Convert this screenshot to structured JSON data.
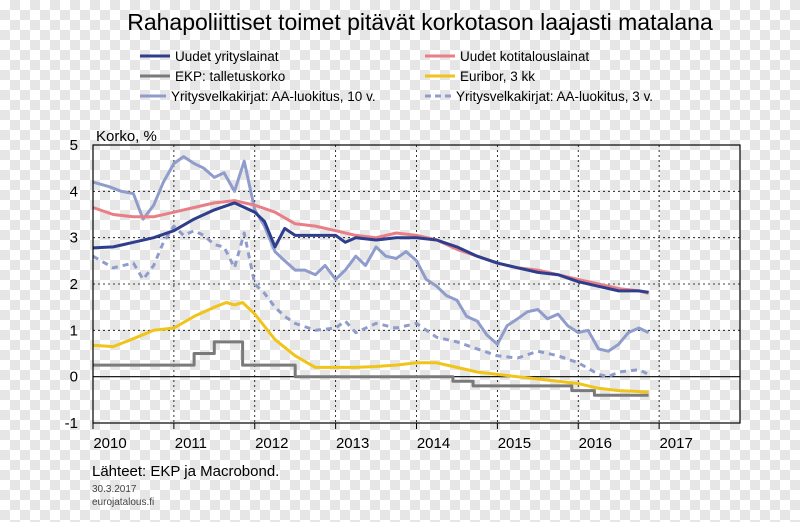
{
  "chart_data": {
    "type": "line",
    "title": "Rahapoliittiset toimet pitävät korkotason laajasti matalana",
    "ylabel": "Korko, %",
    "xlabel": "",
    "ylim": [
      -1,
      5
    ],
    "xlim": [
      2010,
      2018
    ],
    "yticks": [
      -1,
      0,
      1,
      2,
      3,
      4,
      5
    ],
    "xticks": [
      "2010",
      "2011",
      "2012",
      "2013",
      "2014",
      "2015",
      "2016",
      "2017"
    ],
    "grid": true,
    "legend_position": "top",
    "series": [
      {
        "name": "Uudet yrityslainat",
        "color": "#2e3e8c",
        "style": "solid",
        "points": [
          [
            2010.0,
            2.78
          ],
          [
            2010.25,
            2.8
          ],
          [
            2010.5,
            2.9
          ],
          [
            2010.75,
            3.0
          ],
          [
            2011.0,
            3.15
          ],
          [
            2011.25,
            3.4
          ],
          [
            2011.5,
            3.6
          ],
          [
            2011.75,
            3.75
          ],
          [
            2012.0,
            3.55
          ],
          [
            2012.12,
            3.35
          ],
          [
            2012.25,
            2.8
          ],
          [
            2012.37,
            3.2
          ],
          [
            2012.5,
            3.05
          ],
          [
            2012.75,
            3.05
          ],
          [
            2013.0,
            3.05
          ],
          [
            2013.12,
            2.9
          ],
          [
            2013.25,
            3.0
          ],
          [
            2013.5,
            2.95
          ],
          [
            2013.75,
            3.0
          ],
          [
            2014.0,
            3.0
          ],
          [
            2014.25,
            2.95
          ],
          [
            2014.5,
            2.8
          ],
          [
            2014.75,
            2.6
          ],
          [
            2015.0,
            2.45
          ],
          [
            2015.25,
            2.35
          ],
          [
            2015.5,
            2.25
          ],
          [
            2015.75,
            2.2
          ],
          [
            2016.0,
            2.05
          ],
          [
            2016.25,
            1.95
          ],
          [
            2016.5,
            1.85
          ],
          [
            2016.75,
            1.85
          ],
          [
            2016.87,
            1.82
          ]
        ]
      },
      {
        "name": "Uudet kotitalouslainat",
        "color": "#e87e86",
        "style": "solid",
        "points": [
          [
            2010.0,
            3.65
          ],
          [
            2010.25,
            3.5
          ],
          [
            2010.5,
            3.45
          ],
          [
            2010.75,
            3.45
          ],
          [
            2011.0,
            3.55
          ],
          [
            2011.25,
            3.65
          ],
          [
            2011.5,
            3.75
          ],
          [
            2011.75,
            3.8
          ],
          [
            2012.0,
            3.7
          ],
          [
            2012.25,
            3.55
          ],
          [
            2012.5,
            3.3
          ],
          [
            2012.75,
            3.25
          ],
          [
            2013.0,
            3.15
          ],
          [
            2013.25,
            3.05
          ],
          [
            2013.5,
            3.0
          ],
          [
            2013.75,
            3.1
          ],
          [
            2014.0,
            3.05
          ],
          [
            2014.25,
            2.95
          ],
          [
            2014.5,
            2.75
          ],
          [
            2014.75,
            2.6
          ],
          [
            2015.0,
            2.45
          ],
          [
            2015.25,
            2.35
          ],
          [
            2015.5,
            2.3
          ],
          [
            2015.75,
            2.2
          ],
          [
            2016.0,
            2.1
          ],
          [
            2016.25,
            2.0
          ],
          [
            2016.5,
            1.9
          ],
          [
            2016.75,
            1.85
          ],
          [
            2016.87,
            1.8
          ]
        ]
      },
      {
        "name": "EKP: talletuskorko",
        "color": "#7a7a7a",
        "style": "solid",
        "points": [
          [
            2010.0,
            0.25
          ],
          [
            2011.25,
            0.25
          ],
          [
            2011.25,
            0.5
          ],
          [
            2011.5,
            0.5
          ],
          [
            2011.5,
            0.75
          ],
          [
            2011.85,
            0.75
          ],
          [
            2011.85,
            0.25
          ],
          [
            2012.5,
            0.25
          ],
          [
            2012.5,
            0.0
          ],
          [
            2014.45,
            0.0
          ],
          [
            2014.45,
            -0.1
          ],
          [
            2014.7,
            -0.1
          ],
          [
            2014.7,
            -0.2
          ],
          [
            2015.92,
            -0.2
          ],
          [
            2015.92,
            -0.3
          ],
          [
            2016.2,
            -0.3
          ],
          [
            2016.2,
            -0.4
          ],
          [
            2016.87,
            -0.4
          ]
        ]
      },
      {
        "name": "Euribor, 3 kk",
        "color": "#f0c419",
        "style": "solid",
        "points": [
          [
            2010.0,
            0.68
          ],
          [
            2010.25,
            0.65
          ],
          [
            2010.5,
            0.82
          ],
          [
            2010.75,
            1.0
          ],
          [
            2011.0,
            1.05
          ],
          [
            2011.25,
            1.3
          ],
          [
            2011.5,
            1.5
          ],
          [
            2011.65,
            1.6
          ],
          [
            2011.75,
            1.55
          ],
          [
            2011.85,
            1.6
          ],
          [
            2012.0,
            1.35
          ],
          [
            2012.25,
            0.8
          ],
          [
            2012.5,
            0.45
          ],
          [
            2012.75,
            0.2
          ],
          [
            2013.0,
            0.2
          ],
          [
            2013.25,
            0.2
          ],
          [
            2013.5,
            0.22
          ],
          [
            2013.75,
            0.25
          ],
          [
            2014.0,
            0.3
          ],
          [
            2014.25,
            0.3
          ],
          [
            2014.5,
            0.2
          ],
          [
            2014.75,
            0.1
          ],
          [
            2015.0,
            0.05
          ],
          [
            2015.25,
            0.0
          ],
          [
            2015.5,
            -0.05
          ],
          [
            2015.75,
            -0.1
          ],
          [
            2016.0,
            -0.15
          ],
          [
            2016.25,
            -0.25
          ],
          [
            2016.5,
            -0.3
          ],
          [
            2016.87,
            -0.33
          ]
        ]
      },
      {
        "name": "Yritysvelkakirjat: AA-luokitus, 10 v.",
        "color": "#8f9ccc",
        "style": "solid",
        "points": [
          [
            2010.0,
            4.2
          ],
          [
            2010.2,
            4.1
          ],
          [
            2010.35,
            4.0
          ],
          [
            2010.5,
            3.95
          ],
          [
            2010.62,
            3.4
          ],
          [
            2010.75,
            3.7
          ],
          [
            2010.87,
            4.2
          ],
          [
            2011.0,
            4.6
          ],
          [
            2011.12,
            4.75
          ],
          [
            2011.25,
            4.6
          ],
          [
            2011.37,
            4.5
          ],
          [
            2011.5,
            4.3
          ],
          [
            2011.62,
            4.4
          ],
          [
            2011.75,
            4.0
          ],
          [
            2011.87,
            4.65
          ],
          [
            2012.0,
            3.6
          ],
          [
            2012.12,
            3.25
          ],
          [
            2012.25,
            2.7
          ],
          [
            2012.37,
            2.5
          ],
          [
            2012.5,
            2.3
          ],
          [
            2012.62,
            2.3
          ],
          [
            2012.75,
            2.2
          ],
          [
            2012.87,
            2.4
          ],
          [
            2013.0,
            2.1
          ],
          [
            2013.12,
            2.3
          ],
          [
            2013.25,
            2.6
          ],
          [
            2013.37,
            2.4
          ],
          [
            2013.5,
            2.8
          ],
          [
            2013.62,
            2.6
          ],
          [
            2013.75,
            2.55
          ],
          [
            2013.87,
            2.7
          ],
          [
            2014.0,
            2.5
          ],
          [
            2014.12,
            2.1
          ],
          [
            2014.25,
            1.95
          ],
          [
            2014.37,
            1.75
          ],
          [
            2014.5,
            1.65
          ],
          [
            2014.62,
            1.3
          ],
          [
            2014.75,
            1.2
          ],
          [
            2014.87,
            0.9
          ],
          [
            2015.0,
            0.7
          ],
          [
            2015.12,
            1.1
          ],
          [
            2015.25,
            1.25
          ],
          [
            2015.37,
            1.4
          ],
          [
            2015.5,
            1.45
          ],
          [
            2015.62,
            1.25
          ],
          [
            2015.75,
            1.35
          ],
          [
            2015.87,
            1.1
          ],
          [
            2016.0,
            0.95
          ],
          [
            2016.12,
            1.0
          ],
          [
            2016.25,
            0.6
          ],
          [
            2016.37,
            0.55
          ],
          [
            2016.5,
            0.7
          ],
          [
            2016.62,
            0.95
          ],
          [
            2016.75,
            1.05
          ],
          [
            2016.87,
            0.95
          ]
        ]
      },
      {
        "name": "Yritysvelkakirjat: AA-luokitus, 3 v.",
        "color": "#8f9ccc",
        "style": "dashed",
        "points": [
          [
            2010.0,
            2.6
          ],
          [
            2010.25,
            2.35
          ],
          [
            2010.5,
            2.45
          ],
          [
            2010.62,
            2.1
          ],
          [
            2010.75,
            2.4
          ],
          [
            2010.87,
            2.9
          ],
          [
            2011.0,
            3.25
          ],
          [
            2011.12,
            3.05
          ],
          [
            2011.25,
            3.15
          ],
          [
            2011.37,
            3.05
          ],
          [
            2011.5,
            2.85
          ],
          [
            2011.62,
            2.8
          ],
          [
            2011.75,
            2.35
          ],
          [
            2011.87,
            3.1
          ],
          [
            2012.0,
            2.0
          ],
          [
            2012.12,
            1.8
          ],
          [
            2012.25,
            1.5
          ],
          [
            2012.37,
            1.3
          ],
          [
            2012.5,
            1.15
          ],
          [
            2012.75,
            1.0
          ],
          [
            2013.0,
            1.05
          ],
          [
            2013.12,
            1.2
          ],
          [
            2013.25,
            0.95
          ],
          [
            2013.5,
            1.15
          ],
          [
            2013.75,
            1.05
          ],
          [
            2014.0,
            1.15
          ],
          [
            2014.25,
            0.85
          ],
          [
            2014.5,
            0.75
          ],
          [
            2014.75,
            0.6
          ],
          [
            2015.0,
            0.45
          ],
          [
            2015.25,
            0.4
          ],
          [
            2015.5,
            0.55
          ],
          [
            2015.75,
            0.45
          ],
          [
            2016.0,
            0.3
          ],
          [
            2016.25,
            0.05
          ],
          [
            2016.37,
            0.0
          ],
          [
            2016.5,
            0.1
          ],
          [
            2016.75,
            0.15
          ],
          [
            2016.87,
            0.05
          ]
        ]
      }
    ],
    "source": "Lähteet: EKP ja Macrobond.",
    "date": "30.3.2017",
    "site": "eurojatalous.fi"
  }
}
